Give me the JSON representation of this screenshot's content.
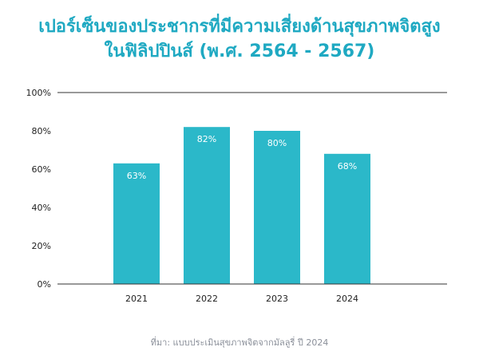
{
  "title_line1": "เปอร์เซ็นของประชากรที่มีความเสี่ยงด้านสุขภาพจิตสูง",
  "title_line2": "ในฟิลิปปินส์ (พ.ศ. 2564 - 2567)",
  "source": "ที่มา: แบบประเมินสุขภาพจิตจากมัลลูรี่ ปี 2024",
  "colors": {
    "bar": "#2bb8c9",
    "title": "#1fa9c2",
    "axis": "#333333"
  },
  "chart_data": {
    "type": "bar",
    "categories": [
      "2021",
      "2022",
      "2023",
      "2024"
    ],
    "values": [
      63,
      82,
      80,
      68
    ],
    "data_labels": [
      "63%",
      "82%",
      "80%",
      "68%"
    ],
    "ylim": [
      0,
      100
    ],
    "yticks": [
      0,
      20,
      40,
      60,
      80,
      100
    ],
    "ytick_labels": [
      "0%",
      "20%",
      "40%",
      "60%",
      "80%",
      "100%"
    ],
    "xlabel": "",
    "ylabel": "",
    "grid": false
  }
}
